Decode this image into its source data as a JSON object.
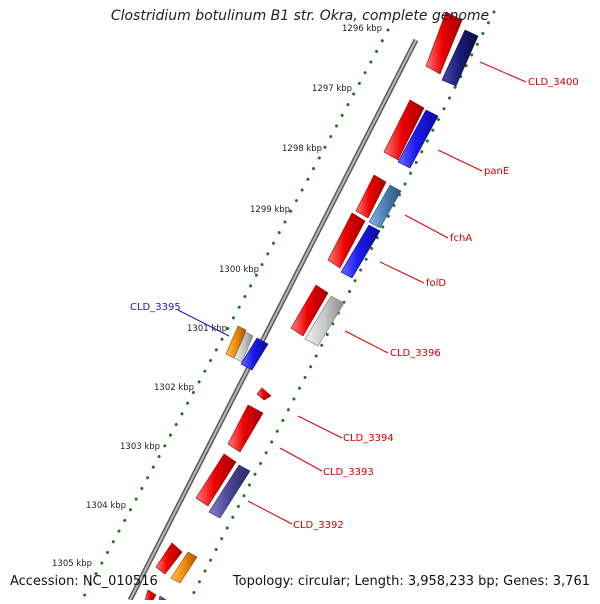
{
  "map": {
    "title": "Clostridium botulinum B1 str. Okra, complete genome",
    "accession": "Accession: NC_010516",
    "topology": "Topology: circular; Length: 3,958,233 bp; Genes: 3,761"
  },
  "ruler": {
    "labels": [
      "1296 kbp",
      "1297 kbp",
      "1298 kbp",
      "1299 kbp",
      "1300 kbp",
      "1301 kbp",
      "1302 kbp",
      "1303 kbp",
      "1304 kbp",
      "1305 kbp"
    ]
  },
  "genes": {
    "cld3400": "CLD_3400",
    "pane": "panE",
    "fcha": "fchA",
    "fold": "folD",
    "cld3395": "CLD_3395",
    "cld3396": "CLD_3396",
    "cld3394": "CLD_3394",
    "cld3393": "CLD_3393",
    "cld3392": "CLD_3392"
  },
  "colors": {
    "forward": "#ee0000",
    "cds_blue": "#1a1aee",
    "cds_navy": "#1a1a77",
    "cds_steel": "#4a7fb8",
    "cds_slate": "#4b4592",
    "cds_gray": "#c8c8c8",
    "cds_orange": "#f08c00",
    "label_red": "#d40000",
    "label_blue": "#1a1acc",
    "ticks": "#1a7a1a",
    "backbone": "#7a7a7a"
  }
}
